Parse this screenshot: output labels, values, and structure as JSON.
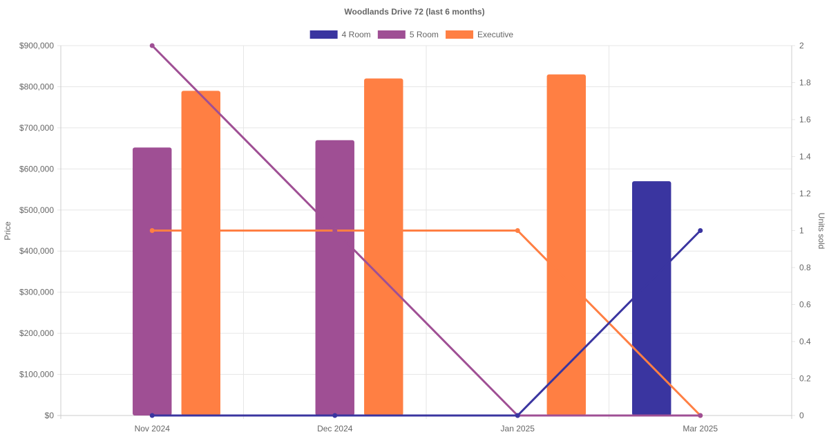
{
  "chart_data": {
    "type": "bar",
    "title": "Woodlands Drive 72 (last 6 months)",
    "categories": [
      "Nov 2024",
      "Dec 2024",
      "Jan 2025",
      "Mar 2025"
    ],
    "y_left": {
      "label": "Price",
      "ticks": [
        "$0",
        "$100,000",
        "$200,000",
        "$300,000",
        "$400,000",
        "$500,000",
        "$600,000",
        "$700,000",
        "$800,000",
        "$900,000"
      ],
      "range": [
        0,
        900000
      ]
    },
    "y_right": {
      "label": "Units sold",
      "ticks": [
        "0",
        "0.2",
        "0.4",
        "0.6",
        "0.8",
        "1",
        "1.2",
        "1.4",
        "1.6",
        "1.8",
        "2"
      ],
      "range": [
        0,
        2
      ]
    },
    "legend": {
      "placement": "top-center"
    },
    "grid": true,
    "bar_series": [
      {
        "name": "4 Room",
        "color": "#3a35a0",
        "values": [
          null,
          null,
          null,
          570000
        ]
      },
      {
        "name": "5 Room",
        "color": "#9f4f94",
        "values": [
          652000,
          670000,
          null,
          null
        ]
      },
      {
        "name": "Executive",
        "color": "#ff7f43",
        "values": [
          790000,
          820000,
          830000,
          null
        ]
      }
    ],
    "line_series": [
      {
        "name": "4 Room",
        "color": "#3a35a0",
        "values": [
          0,
          0,
          0,
          1
        ]
      },
      {
        "name": "5 Room",
        "color": "#9f4f94",
        "values": [
          2,
          1,
          0,
          0
        ]
      },
      {
        "name": "Executive",
        "color": "#ff7f43",
        "values": [
          1,
          1,
          1,
          0
        ]
      }
    ]
  }
}
